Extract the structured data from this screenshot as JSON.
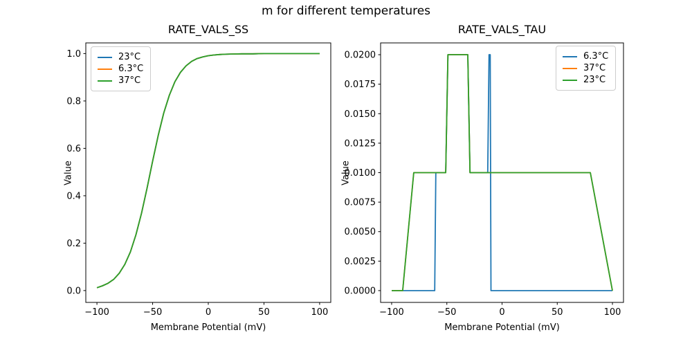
{
  "figure": {
    "suptitle": "m for different temperatures"
  },
  "chart_data": [
    {
      "type": "line",
      "title": "RATE_VALS_SS",
      "xlabel": "Membrane Potential (mV)",
      "ylabel": "Value",
      "xlim": [
        -110,
        110
      ],
      "ylim": [
        -0.05,
        1.045
      ],
      "grid": false,
      "legend_position": "upper-left",
      "xticks": {
        "values": [
          -100,
          -50,
          0,
          50,
          100
        ],
        "labels": [
          "−100",
          "−50",
          "0",
          "50",
          "100"
        ]
      },
      "yticks": {
        "values": [
          0.0,
          0.2,
          0.4,
          0.6,
          0.8,
          1.0
        ],
        "labels": [
          "0.0",
          "0.2",
          "0.4",
          "0.6",
          "0.8",
          "1.0"
        ]
      },
      "series": [
        {
          "name": "23°C",
          "color": "#1f77b4",
          "points": [
            [
              -100,
              0.012
            ],
            [
              -95,
              0.02
            ],
            [
              -90,
              0.031
            ],
            [
              -85,
              0.047
            ],
            [
              -80,
              0.073
            ],
            [
              -75,
              0.11
            ],
            [
              -70,
              0.163
            ],
            [
              -65,
              0.235
            ],
            [
              -60,
              0.326
            ],
            [
              -55,
              0.432
            ],
            [
              -50,
              0.545
            ],
            [
              -45,
              0.654
            ],
            [
              -40,
              0.749
            ],
            [
              -35,
              0.824
            ],
            [
              -30,
              0.881
            ],
            [
              -25,
              0.921
            ],
            [
              -20,
              0.948
            ],
            [
              -15,
              0.967
            ],
            [
              -10,
              0.979
            ],
            [
              -5,
              0.986
            ],
            [
              0,
              0.991
            ],
            [
              5,
              0.994
            ],
            [
              10,
              0.996
            ],
            [
              15,
              0.997
            ],
            [
              20,
              0.998
            ],
            [
              30,
              0.999
            ],
            [
              40,
              0.999
            ],
            [
              50,
              1.0
            ],
            [
              60,
              1.0
            ],
            [
              70,
              1.0
            ],
            [
              80,
              1.0
            ],
            [
              90,
              1.0
            ],
            [
              100,
              1.0
            ]
          ]
        },
        {
          "name": "6.3°C",
          "color": "#ff7f0e",
          "points": [
            [
              -100,
              0.012
            ],
            [
              -95,
              0.02
            ],
            [
              -90,
              0.031
            ],
            [
              -85,
              0.047
            ],
            [
              -80,
              0.073
            ],
            [
              -75,
              0.11
            ],
            [
              -70,
              0.163
            ],
            [
              -65,
              0.235
            ],
            [
              -60,
              0.326
            ],
            [
              -55,
              0.432
            ],
            [
              -50,
              0.545
            ],
            [
              -45,
              0.654
            ],
            [
              -40,
              0.749
            ],
            [
              -35,
              0.824
            ],
            [
              -30,
              0.881
            ],
            [
              -25,
              0.921
            ],
            [
              -20,
              0.948
            ],
            [
              -15,
              0.967
            ],
            [
              -10,
              0.979
            ],
            [
              -5,
              0.986
            ],
            [
              0,
              0.991
            ],
            [
              5,
              0.994
            ],
            [
              10,
              0.996
            ],
            [
              15,
              0.997
            ],
            [
              20,
              0.998
            ],
            [
              30,
              0.999
            ],
            [
              40,
              0.999
            ],
            [
              50,
              1.0
            ],
            [
              60,
              1.0
            ],
            [
              70,
              1.0
            ],
            [
              80,
              1.0
            ],
            [
              90,
              1.0
            ],
            [
              100,
              1.0
            ]
          ]
        },
        {
          "name": "37°C",
          "color": "#2ca02c",
          "points": [
            [
              -100,
              0.012
            ],
            [
              -95,
              0.02
            ],
            [
              -90,
              0.031
            ],
            [
              -85,
              0.047
            ],
            [
              -80,
              0.073
            ],
            [
              -75,
              0.11
            ],
            [
              -70,
              0.163
            ],
            [
              -65,
              0.235
            ],
            [
              -60,
              0.326
            ],
            [
              -55,
              0.432
            ],
            [
              -50,
              0.545
            ],
            [
              -45,
              0.654
            ],
            [
              -40,
              0.749
            ],
            [
              -35,
              0.824
            ],
            [
              -30,
              0.881
            ],
            [
              -25,
              0.921
            ],
            [
              -20,
              0.948
            ],
            [
              -15,
              0.967
            ],
            [
              -10,
              0.979
            ],
            [
              -5,
              0.986
            ],
            [
              0,
              0.991
            ],
            [
              5,
              0.994
            ],
            [
              10,
              0.996
            ],
            [
              15,
              0.997
            ],
            [
              20,
              0.998
            ],
            [
              30,
              0.999
            ],
            [
              40,
              0.999
            ],
            [
              50,
              1.0
            ],
            [
              60,
              1.0
            ],
            [
              70,
              1.0
            ],
            [
              80,
              1.0
            ],
            [
              90,
              1.0
            ],
            [
              100,
              1.0
            ]
          ]
        }
      ]
    },
    {
      "type": "line",
      "title": "RATE_VALS_TAU",
      "xlabel": "Membrane Potential (mV)",
      "ylabel": "Value",
      "xlim": [
        -110,
        110
      ],
      "ylim": [
        -0.001,
        0.021
      ],
      "grid": false,
      "legend_position": "upper-right",
      "xticks": {
        "values": [
          -100,
          -50,
          0,
          50,
          100
        ],
        "labels": [
          "−100",
          "−50",
          "0",
          "50",
          "100"
        ]
      },
      "yticks": {
        "values": [
          0.0,
          0.0025,
          0.005,
          0.0075,
          0.01,
          0.0125,
          0.015,
          0.0175,
          0.02
        ],
        "labels": [
          "0.0000",
          "0.0025",
          "0.0050",
          "0.0075",
          "0.0100",
          "0.0125",
          "0.0150",
          "0.0175",
          "0.0200"
        ]
      },
      "series": [
        {
          "name": "6.3°C",
          "color": "#1f77b4",
          "points": [
            [
              -100,
              0
            ],
            [
              -61,
              0
            ],
            [
              -60,
              0.01
            ],
            [
              -51,
              0.01
            ],
            [
              -49,
              0.02
            ],
            [
              -31,
              0.02
            ],
            [
              -29,
              0.01
            ],
            [
              -13,
              0.01
            ],
            [
              -11.8,
              0.02
            ],
            [
              -10.7,
              0.02
            ],
            [
              -10,
              0
            ],
            [
              100,
              0
            ]
          ]
        },
        {
          "name": "37°C",
          "color": "#ff7f0e",
          "points": [
            [
              -100,
              0
            ],
            [
              -90,
              0
            ],
            [
              -80,
              0.01
            ],
            [
              -51,
              0.01
            ],
            [
              -49,
              0.02
            ],
            [
              -31,
              0.02
            ],
            [
              -29,
              0.01
            ],
            [
              80,
              0.01
            ],
            [
              100,
              0
            ]
          ]
        },
        {
          "name": "23°C",
          "color": "#2ca02c",
          "points": [
            [
              -100,
              0
            ],
            [
              -90,
              0
            ],
            [
              -80,
              0.01
            ],
            [
              -51,
              0.01
            ],
            [
              -49,
              0.02
            ],
            [
              -31,
              0.02
            ],
            [
              -29,
              0.01
            ],
            [
              80,
              0.01
            ],
            [
              100,
              0
            ]
          ]
        }
      ]
    }
  ]
}
